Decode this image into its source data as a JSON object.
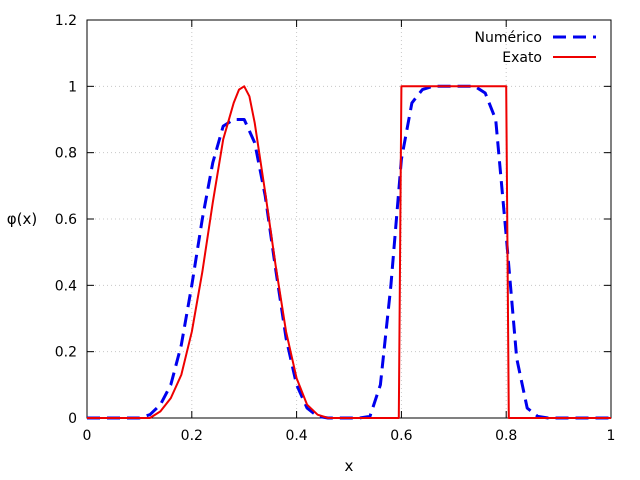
{
  "chart_data": {
    "type": "line",
    "title": "",
    "xlabel": "x",
    "ylabel": "φ(x)",
    "xlim": [
      0,
      1
    ],
    "ylim": [
      0,
      1.2
    ],
    "grid": true,
    "legend_position": "top-right",
    "x_ticks": [
      "0",
      "0.2",
      "0.4",
      "0.6",
      "0.8",
      "1"
    ],
    "y_ticks": [
      "0",
      "0.2",
      "0.4",
      "0.6",
      "0.8",
      "1",
      "1.2"
    ],
    "series": [
      {
        "name": "Numérico",
        "color": "#0000ee",
        "style": "dashed",
        "x": [
          0,
          0.1,
          0.12,
          0.14,
          0.16,
          0.18,
          0.2,
          0.22,
          0.24,
          0.26,
          0.28,
          0.3,
          0.32,
          0.34,
          0.36,
          0.38,
          0.4,
          0.42,
          0.44,
          0.46,
          0.48,
          0.5,
          0.52,
          0.54,
          0.56,
          0.58,
          0.6,
          0.62,
          0.64,
          0.66,
          0.68,
          0.7,
          0.72,
          0.74,
          0.76,
          0.78,
          0.8,
          0.82,
          0.84,
          0.86,
          0.88,
          1.0
        ],
        "y": [
          0,
          0.0,
          0.01,
          0.04,
          0.1,
          0.22,
          0.4,
          0.6,
          0.77,
          0.88,
          0.9,
          0.9,
          0.83,
          0.67,
          0.45,
          0.24,
          0.1,
          0.03,
          0.005,
          0.0,
          0.0,
          0.0,
          0.0,
          0.005,
          0.1,
          0.4,
          0.78,
          0.95,
          0.99,
          1.0,
          1.0,
          1.0,
          1.0,
          1.0,
          0.98,
          0.9,
          0.55,
          0.18,
          0.03,
          0.005,
          0.0,
          0.0
        ]
      },
      {
        "name": "Exato",
        "color": "#ee0000",
        "style": "solid",
        "x": [
          0,
          0.12,
          0.14,
          0.16,
          0.18,
          0.2,
          0.22,
          0.24,
          0.26,
          0.28,
          0.29,
          0.3,
          0.31,
          0.32,
          0.34,
          0.36,
          0.38,
          0.4,
          0.42,
          0.44,
          0.46,
          0.48,
          0.595,
          0.6,
          0.8,
          0.805,
          1.0
        ],
        "y": [
          0,
          0.0,
          0.02,
          0.06,
          0.13,
          0.26,
          0.44,
          0.65,
          0.84,
          0.95,
          0.99,
          1.0,
          0.97,
          0.89,
          0.68,
          0.46,
          0.26,
          0.12,
          0.04,
          0.01,
          0.0,
          0.0,
          0.0,
          1.0,
          1.0,
          0.0,
          0.0
        ]
      }
    ]
  }
}
